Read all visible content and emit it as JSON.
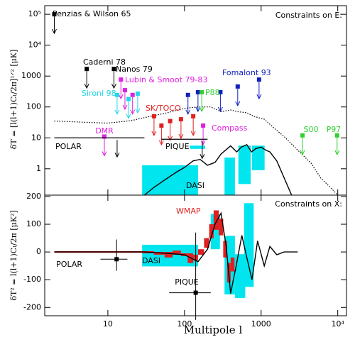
{
  "chart_data": [
    {
      "type": "line",
      "title": "Constraints on E:",
      "ylabel": "δT = [l(l+1)Cₗ/2π]¹ᐟ² [μK]",
      "log_x": true,
      "log_y": true,
      "xlim": [
        1.5,
        13000
      ],
      "ylim": [
        0.14,
        190000
      ],
      "yticks": [
        1,
        10,
        100,
        1000,
        {
          "value": 10000,
          "label": "10⁴"
        },
        {
          "value": 100000,
          "label": "10⁵"
        }
      ],
      "series": [
        {
          "color": "#000000",
          "line_style": "solid",
          "x": [
            30,
            40,
            60,
            80,
            100,
            130,
            160,
            200,
            250,
            300,
            400,
            480,
            550,
            650,
            750,
            850,
            1000,
            1150,
            1300,
            1600,
            2000,
            2500
          ],
          "values": [
            0.14,
            0.25,
            0.5,
            0.8,
            1.1,
            1.8,
            2,
            1.3,
            1.6,
            3,
            5.5,
            3.5,
            5,
            6,
            3.5,
            4.5,
            5,
            4,
            3.5,
            1.8,
            0.5,
            0.14
          ]
        },
        {
          "color": "#000000",
          "line_style": "dotted",
          "x": [
            2,
            5,
            10,
            20,
            30,
            60,
            100,
            150,
            220,
            300,
            400,
            500,
            650,
            800,
            1100,
            1500,
            2000,
            3000,
            4500,
            6000,
            8000,
            10000
          ],
          "values": [
            35,
            32,
            30,
            36,
            45,
            65,
            90,
            100,
            100,
            70,
            80,
            70,
            65,
            50,
            40,
            20,
            11,
            4,
            1.5,
            0.5,
            0.25,
            0.14
          ]
        }
      ],
      "limits": [
        {
          "name": "Penzias & Wilson 65",
          "color": "#000000",
          "points": [
            {
              "x": 2,
              "y": 100000
            }
          ]
        },
        {
          "name": "Caderni 78",
          "color": "#000000",
          "points": [
            {
              "x": 5.3,
              "y": 1700
            }
          ]
        },
        {
          "name": "Nanos 79",
          "color": "#000000",
          "points": [
            {
              "x": 12,
              "y": 1700
            }
          ]
        },
        {
          "name": "Lubin & Smoot 79-83",
          "color": "#e020e0",
          "points": [
            {
              "x": 14.8,
              "y": 770
            },
            {
              "x": 16.7,
              "y": 350
            },
            {
              "x": 21,
              "y": 245
            }
          ]
        },
        {
          "name": "Sironi 98",
          "color": "#22d8e8",
          "points": [
            {
              "x": 13.2,
              "y": 245
            },
            {
              "x": 18.6,
              "y": 180
            },
            {
              "x": 24.5,
              "y": 270
            }
          ]
        },
        {
          "name": "Fomalont 93",
          "color": "#1020c0",
          "points": [
            {
              "x": 111,
              "y": 245
            },
            {
              "x": 150,
              "y": 300
            },
            {
              "x": 294,
              "y": 300
            },
            {
              "x": 495,
              "y": 460
            },
            {
              "x": 940,
              "y": 770
            }
          ]
        },
        {
          "name": "P88",
          "color": "#30d030",
          "points": [
            {
              "x": 168,
              "y": 300
            }
          ]
        },
        {
          "name": "SK/TOCO",
          "color": "#e02020",
          "points": [
            {
              "x": 40,
              "y": 50
            },
            {
              "x": 50,
              "y": 25
            },
            {
              "x": 65,
              "y": 35
            },
            {
              "x": 90,
              "y": 40
            },
            {
              "x": 130,
              "y": 50
            }
          ]
        },
        {
          "name": "DMR",
          "color": "#e020e0",
          "points": [
            {
              "x": 9,
              "y": 11
            }
          ]
        },
        {
          "name": "Compass",
          "color": "#e020e0",
          "points": [
            {
              "x": 175,
              "y": 25
            }
          ]
        },
        {
          "name": "S00",
          "color": "#30d030",
          "points": [
            {
              "x": 3470,
              "y": 12
            }
          ]
        },
        {
          "name": "P97",
          "color": "#30d030",
          "points": [
            {
              "x": 9800,
              "y": 12
            }
          ]
        },
        {
          "name": "POLAR",
          "color": "#000000",
          "points": [
            {
              "xspan": [
                2,
                30
              ],
              "y": 10
            }
          ]
        },
        {
          "name": "PIQUE",
          "color": "#000000",
          "points": [
            {
              "xspan": [
                50,
                200
              ],
              "y": 9
            }
          ]
        }
      ],
      "bands": [
        {
          "name": "DASI",
          "color": "#00e5ee",
          "boxes": [
            [
              28,
              150,
              0.14,
              1.3
            ],
            [
              118,
              186,
              4.4,
              5.6
            ],
            [
              333,
              455,
              0.14,
              2.3
            ],
            [
              505,
              730,
              0.32,
              5.6
            ],
            [
              760,
              1110,
              0.9,
              5.6
            ]
          ]
        }
      ]
    },
    {
      "type": "line",
      "title": "Constraints on X:",
      "ylabel": "δT² = l(l+1)Cₗ/2π [μK²]",
      "xlabel": "Multipole l",
      "log_x": true,
      "log_y": false,
      "xlim": [
        1.5,
        13000
      ],
      "ylim": [
        -230,
        205
      ],
      "xticks": [
        10,
        100,
        1000,
        {
          "value": 10000,
          "label": "10⁴"
        }
      ],
      "yticks": [
        -200,
        -100,
        0,
        100,
        200
      ],
      "series": [
        {
          "color": "#000000",
          "line_style": "solid",
          "x": [
            2,
            10,
            30,
            60,
            100,
            150,
            200,
            250,
            300,
            350,
            400,
            480,
            560,
            650,
            760,
            900,
            1100,
            1300,
            1600,
            2000,
            3000
          ],
          "values": [
            0,
            0,
            0,
            -5,
            -10,
            -35,
            10,
            100,
            140,
            20,
            -150,
            -40,
            60,
            -20,
            -100,
            40,
            -50,
            20,
            -10,
            0,
            0
          ]
        }
      ],
      "bands": [
        {
          "name": "DASI",
          "color": "#00e5ee",
          "boxes": [
            [
              28,
              150,
              -52,
              26
            ],
            [
              220,
              290,
              10,
              137
            ],
            [
              333,
              455,
              -153,
              58
            ],
            [
              455,
              620,
              -166,
              -8
            ],
            [
              600,
              800,
              -126,
              176
            ]
          ]
        },
        {
          "name": "WMAP",
          "color": "#e02020",
          "boxes": [
            [
              2,
              28,
              -3,
              3
            ],
            [
              28,
              40,
              -5,
              3
            ],
            [
              40,
              55,
              -10,
              0
            ],
            [
              55,
              70,
              -20,
              0
            ],
            [
              70,
              90,
              -10,
              5
            ],
            [
              90,
              110,
              -15,
              -5
            ],
            [
              110,
              130,
              -40,
              -5
            ],
            [
              130,
              150,
              -30,
              -10
            ],
            [
              150,
              180,
              -10,
              10
            ],
            [
              180,
              210,
              15,
              50
            ],
            [
              210,
              240,
              50,
              100
            ],
            [
              240,
              280,
              80,
              150
            ],
            [
              280,
              320,
              60,
              120
            ],
            [
              320,
              360,
              -20,
              40
            ],
            [
              360,
              400,
              -110,
              -40
            ],
            [
              400,
              450,
              -70,
              -20
            ]
          ]
        }
      ],
      "points": [
        {
          "name": "POLAR",
          "color": "#000000",
          "x": 13,
          "y": -26,
          "yrange": [
            -68,
            45
          ],
          "xrange": [
            8,
            18
          ]
        },
        {
          "name": "PIQUE",
          "color": "#000000",
          "x": 140,
          "y": -147,
          "yrange": [
            -245,
            70
          ],
          "xrange": [
            63,
            220
          ]
        }
      ]
    }
  ]
}
